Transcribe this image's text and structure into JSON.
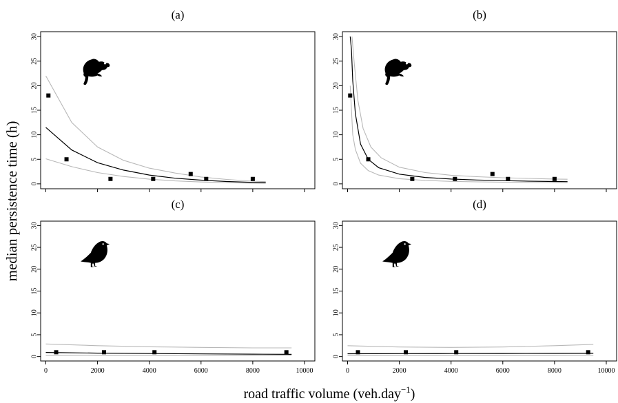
{
  "figure": {
    "ylabel": "median persistence time (h)",
    "xlabel_main": "road traffic volume (veh.day",
    "xlabel_sup": "−1",
    "xlabel_close": ")"
  },
  "chart_data": [
    {
      "type": "scatter",
      "title": "(a)",
      "icon": "frog-icon",
      "xlim": [
        -200,
        10400
      ],
      "ylim": [
        -1,
        31
      ],
      "xticks": [
        0,
        2000,
        4000,
        6000,
        8000,
        10000
      ],
      "xtick_labels": [
        "",
        "",
        "",
        "",
        "",
        ""
      ],
      "yticks": [
        0,
        5,
        10,
        15,
        20,
        25,
        30
      ],
      "ytick_labels": [
        "0",
        "5",
        "10",
        "15",
        "20",
        "25",
        "30"
      ],
      "points": {
        "x": [
          100,
          800,
          2500,
          4150,
          5600,
          6200,
          8000
        ],
        "y": [
          18,
          5,
          1,
          1,
          2,
          1,
          1
        ]
      },
      "fit": {
        "x": [
          0,
          1000,
          2000,
          3000,
          4000,
          5000,
          6000,
          7000,
          8000,
          8500
        ],
        "y": [
          11.5,
          6.9,
          4.3,
          2.8,
          1.8,
          1.15,
          0.75,
          0.48,
          0.3,
          0.25
        ]
      },
      "ci_upper": {
        "x": [
          0,
          1000,
          2000,
          3000,
          4000,
          5000,
          6000,
          7000,
          8000,
          8500
        ],
        "y": [
          22,
          12.5,
          7.5,
          4.8,
          3.2,
          2.2,
          1.4,
          0.9,
          0.55,
          0.45
        ]
      },
      "ci_lower": {
        "x": [
          0,
          1000,
          2000,
          3000,
          4000,
          5000,
          6000,
          7000,
          8000,
          8500
        ],
        "y": [
          5.1,
          3.5,
          2.3,
          1.5,
          0.95,
          0.6,
          0.38,
          0.24,
          0.15,
          0.12
        ]
      }
    },
    {
      "type": "scatter",
      "title": "(b)",
      "icon": "frog-icon",
      "xlim": [
        -200,
        10400
      ],
      "ylim": [
        -1,
        31
      ],
      "xticks": [
        0,
        2000,
        4000,
        6000,
        8000,
        10000
      ],
      "xtick_labels": [
        "",
        "",
        "",
        "",
        "",
        ""
      ],
      "yticks": [
        0,
        5,
        10,
        15,
        20,
        25,
        30
      ],
      "ytick_labels": [
        "0",
        "5",
        "10",
        "15",
        "20",
        "25",
        "30"
      ],
      "points": {
        "x": [
          100,
          800,
          2500,
          4150,
          5600,
          6200,
          8000
        ],
        "y": [
          18,
          5,
          1,
          1,
          2,
          1,
          1
        ]
      },
      "fit": {
        "x": [
          100,
          150,
          200,
          300,
          500,
          800,
          1200,
          2000,
          3000,
          4000,
          5000,
          6000,
          7000,
          8000,
          8500
        ],
        "y": [
          30,
          27.4,
          21,
          14.3,
          8.1,
          5,
          3.3,
          1.98,
          1.3,
          0.98,
          0.78,
          0.65,
          0.55,
          0.48,
          0.45
        ]
      },
      "ci_upper": {
        "x": [
          170,
          250,
          400,
          600,
          900,
          1300,
          2000,
          3000,
          4000,
          5000,
          6000,
          7000,
          8000,
          8500
        ],
        "y": [
          30,
          25,
          17,
          11.3,
          7.5,
          5.3,
          3.4,
          2.3,
          1.75,
          1.45,
          1.25,
          1.1,
          0.98,
          0.93
        ]
      },
      "ci_lower": {
        "x": [
          100,
          200,
          300,
          500,
          800,
          1200,
          2000,
          3000,
          4000,
          5000,
          6000,
          7000,
          8000,
          8500
        ],
        "y": [
          20,
          10,
          7,
          4.2,
          2.7,
          1.8,
          1.05,
          0.7,
          0.5,
          0.4,
          0.33,
          0.28,
          0.24,
          0.22
        ]
      }
    },
    {
      "type": "scatter",
      "title": "(c)",
      "icon": "bird-icon",
      "xlim": [
        -200,
        10400
      ],
      "ylim": [
        -1,
        31
      ],
      "xticks": [
        0,
        2000,
        4000,
        6000,
        8000,
        10000
      ],
      "xtick_labels": [
        "0",
        "2000",
        "4000",
        "6000",
        "8000",
        "10000"
      ],
      "yticks": [
        0,
        5,
        10,
        15,
        20,
        25,
        30
      ],
      "ytick_labels": [
        "0",
        "5",
        "10",
        "15",
        "20",
        "25",
        "30"
      ],
      "points": {
        "x": [
          400,
          2250,
          4200,
          9300
        ],
        "y": [
          1,
          1,
          1,
          1
        ]
      },
      "fit": {
        "x": [
          0,
          2000,
          4000,
          6000,
          8000,
          9500
        ],
        "y": [
          0.95,
          0.8,
          0.7,
          0.62,
          0.56,
          0.52
        ]
      },
      "ci_upper": {
        "x": [
          0,
          2000,
          4000,
          6000,
          8000,
          9500
        ],
        "y": [
          2.9,
          2.5,
          2.25,
          2.1,
          2.0,
          2.0
        ]
      },
      "ci_lower": {
        "x": [
          0,
          2000,
          4000,
          6000,
          8000,
          9500
        ],
        "y": [
          0.3,
          0.28,
          0.25,
          0.22,
          0.2,
          0.18
        ]
      }
    },
    {
      "type": "scatter",
      "title": "(d)",
      "icon": "bird-icon",
      "xlim": [
        -200,
        10400
      ],
      "ylim": [
        -1,
        31
      ],
      "xticks": [
        0,
        2000,
        4000,
        6000,
        8000,
        10000
      ],
      "xtick_labels": [
        "0",
        "2000",
        "4000",
        "6000",
        "8000",
        "10000"
      ],
      "yticks": [
        0,
        5,
        10,
        15,
        20,
        25,
        30
      ],
      "ytick_labels": [
        "0",
        "5",
        "10",
        "15",
        "20",
        "25",
        "30"
      ],
      "points": {
        "x": [
          400,
          2250,
          4200,
          9300
        ],
        "y": [
          1,
          1,
          1,
          1
        ]
      },
      "fit": {
        "x": [
          0,
          2000,
          4000,
          6000,
          8000,
          9500
        ],
        "y": [
          0.65,
          0.68,
          0.7,
          0.72,
          0.74,
          0.75
        ]
      },
      "ci_upper": {
        "x": [
          0,
          2000,
          4000,
          6000,
          8000,
          9500
        ],
        "y": [
          2.5,
          2.2,
          2.1,
          2.2,
          2.5,
          2.8
        ]
      },
      "ci_lower": {
        "x": [
          0,
          2000,
          4000,
          6000,
          8000,
          9500
        ],
        "y": [
          0.2,
          0.22,
          0.23,
          0.24,
          0.25,
          0.26
        ]
      }
    }
  ]
}
